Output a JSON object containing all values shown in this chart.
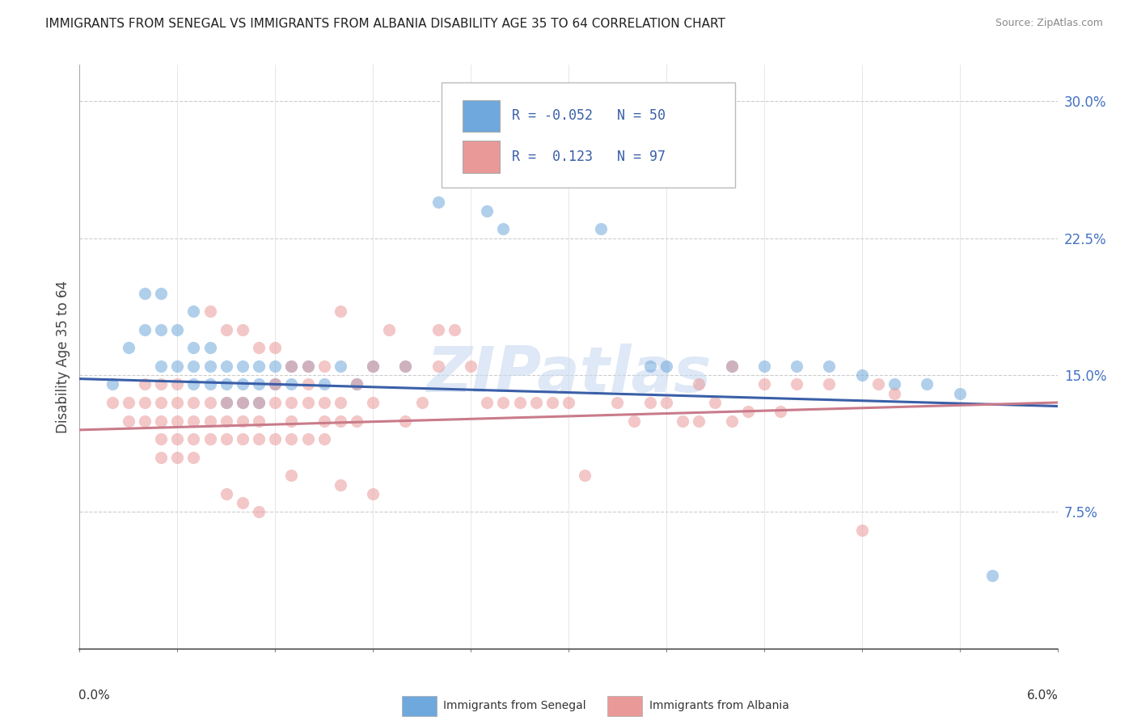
{
  "title": "IMMIGRANTS FROM SENEGAL VS IMMIGRANTS FROM ALBANIA DISABILITY AGE 35 TO 64 CORRELATION CHART",
  "source": "Source: ZipAtlas.com",
  "ylabel": "Disability Age 35 to 64",
  "y_ticks": [
    0.075,
    0.15,
    0.225,
    0.3
  ],
  "y_tick_labels": [
    "7.5%",
    "15.0%",
    "22.5%",
    "30.0%"
  ],
  "x_lim": [
    0.0,
    0.06
  ],
  "y_lim": [
    0.0,
    0.32
  ],
  "senegal_color": "#6fa8dc",
  "albania_color": "#ea9999",
  "trend_blue": "#3a5fa8",
  "trend_pink": "#c97b8a",
  "senegal_scatter": [
    [
      0.002,
      0.145
    ],
    [
      0.003,
      0.165
    ],
    [
      0.004,
      0.195
    ],
    [
      0.004,
      0.175
    ],
    [
      0.005,
      0.155
    ],
    [
      0.005,
      0.195
    ],
    [
      0.005,
      0.175
    ],
    [
      0.006,
      0.175
    ],
    [
      0.006,
      0.155
    ],
    [
      0.007,
      0.185
    ],
    [
      0.007,
      0.165
    ],
    [
      0.007,
      0.155
    ],
    [
      0.007,
      0.145
    ],
    [
      0.008,
      0.165
    ],
    [
      0.008,
      0.155
    ],
    [
      0.008,
      0.145
    ],
    [
      0.009,
      0.155
    ],
    [
      0.009,
      0.145
    ],
    [
      0.009,
      0.135
    ],
    [
      0.01,
      0.155
    ],
    [
      0.01,
      0.145
    ],
    [
      0.01,
      0.135
    ],
    [
      0.011,
      0.155
    ],
    [
      0.011,
      0.145
    ],
    [
      0.011,
      0.135
    ],
    [
      0.012,
      0.155
    ],
    [
      0.012,
      0.145
    ],
    [
      0.013,
      0.145
    ],
    [
      0.014,
      0.155
    ],
    [
      0.015,
      0.145
    ],
    [
      0.016,
      0.155
    ],
    [
      0.017,
      0.145
    ],
    [
      0.018,
      0.155
    ],
    [
      0.02,
      0.155
    ],
    [
      0.022,
      0.245
    ],
    [
      0.025,
      0.24
    ],
    [
      0.026,
      0.23
    ],
    [
      0.032,
      0.23
    ],
    [
      0.035,
      0.155
    ],
    [
      0.036,
      0.155
    ],
    [
      0.04,
      0.155
    ],
    [
      0.042,
      0.155
    ],
    [
      0.044,
      0.155
    ],
    [
      0.046,
      0.155
    ],
    [
      0.048,
      0.15
    ],
    [
      0.05,
      0.145
    ],
    [
      0.052,
      0.145
    ],
    [
      0.054,
      0.14
    ],
    [
      0.056,
      0.04
    ],
    [
      0.013,
      0.155
    ]
  ],
  "albania_scatter": [
    [
      0.002,
      0.135
    ],
    [
      0.003,
      0.135
    ],
    [
      0.003,
      0.125
    ],
    [
      0.004,
      0.145
    ],
    [
      0.004,
      0.135
    ],
    [
      0.004,
      0.125
    ],
    [
      0.005,
      0.145
    ],
    [
      0.005,
      0.135
    ],
    [
      0.005,
      0.125
    ],
    [
      0.005,
      0.115
    ],
    [
      0.005,
      0.105
    ],
    [
      0.006,
      0.145
    ],
    [
      0.006,
      0.135
    ],
    [
      0.006,
      0.125
    ],
    [
      0.006,
      0.115
    ],
    [
      0.006,
      0.105
    ],
    [
      0.007,
      0.135
    ],
    [
      0.007,
      0.125
    ],
    [
      0.007,
      0.115
    ],
    [
      0.007,
      0.105
    ],
    [
      0.008,
      0.185
    ],
    [
      0.008,
      0.135
    ],
    [
      0.008,
      0.125
    ],
    [
      0.008,
      0.115
    ],
    [
      0.009,
      0.175
    ],
    [
      0.009,
      0.135
    ],
    [
      0.009,
      0.125
    ],
    [
      0.009,
      0.115
    ],
    [
      0.009,
      0.085
    ],
    [
      0.01,
      0.175
    ],
    [
      0.01,
      0.135
    ],
    [
      0.01,
      0.125
    ],
    [
      0.01,
      0.115
    ],
    [
      0.01,
      0.08
    ],
    [
      0.011,
      0.165
    ],
    [
      0.011,
      0.135
    ],
    [
      0.011,
      0.125
    ],
    [
      0.011,
      0.115
    ],
    [
      0.011,
      0.075
    ],
    [
      0.012,
      0.165
    ],
    [
      0.012,
      0.145
    ],
    [
      0.012,
      0.135
    ],
    [
      0.012,
      0.115
    ],
    [
      0.013,
      0.155
    ],
    [
      0.013,
      0.135
    ],
    [
      0.013,
      0.125
    ],
    [
      0.013,
      0.115
    ],
    [
      0.013,
      0.095
    ],
    [
      0.014,
      0.155
    ],
    [
      0.014,
      0.145
    ],
    [
      0.014,
      0.135
    ],
    [
      0.014,
      0.115
    ],
    [
      0.015,
      0.155
    ],
    [
      0.015,
      0.135
    ],
    [
      0.015,
      0.125
    ],
    [
      0.015,
      0.115
    ],
    [
      0.016,
      0.185
    ],
    [
      0.016,
      0.135
    ],
    [
      0.016,
      0.125
    ],
    [
      0.016,
      0.09
    ],
    [
      0.017,
      0.145
    ],
    [
      0.017,
      0.125
    ],
    [
      0.018,
      0.155
    ],
    [
      0.018,
      0.135
    ],
    [
      0.018,
      0.085
    ],
    [
      0.019,
      0.175
    ],
    [
      0.02,
      0.155
    ],
    [
      0.02,
      0.125
    ],
    [
      0.021,
      0.135
    ],
    [
      0.022,
      0.175
    ],
    [
      0.022,
      0.155
    ],
    [
      0.023,
      0.175
    ],
    [
      0.024,
      0.155
    ],
    [
      0.025,
      0.135
    ],
    [
      0.026,
      0.135
    ],
    [
      0.027,
      0.135
    ],
    [
      0.028,
      0.135
    ],
    [
      0.029,
      0.135
    ],
    [
      0.03,
      0.135
    ],
    [
      0.031,
      0.095
    ],
    [
      0.033,
      0.135
    ],
    [
      0.034,
      0.125
    ],
    [
      0.035,
      0.135
    ],
    [
      0.036,
      0.135
    ],
    [
      0.037,
      0.125
    ],
    [
      0.038,
      0.145
    ],
    [
      0.038,
      0.125
    ],
    [
      0.039,
      0.135
    ],
    [
      0.04,
      0.155
    ],
    [
      0.04,
      0.125
    ],
    [
      0.041,
      0.13
    ],
    [
      0.042,
      0.145
    ],
    [
      0.043,
      0.13
    ],
    [
      0.044,
      0.145
    ],
    [
      0.046,
      0.145
    ],
    [
      0.048,
      0.065
    ],
    [
      0.049,
      0.145
    ],
    [
      0.05,
      0.14
    ]
  ]
}
